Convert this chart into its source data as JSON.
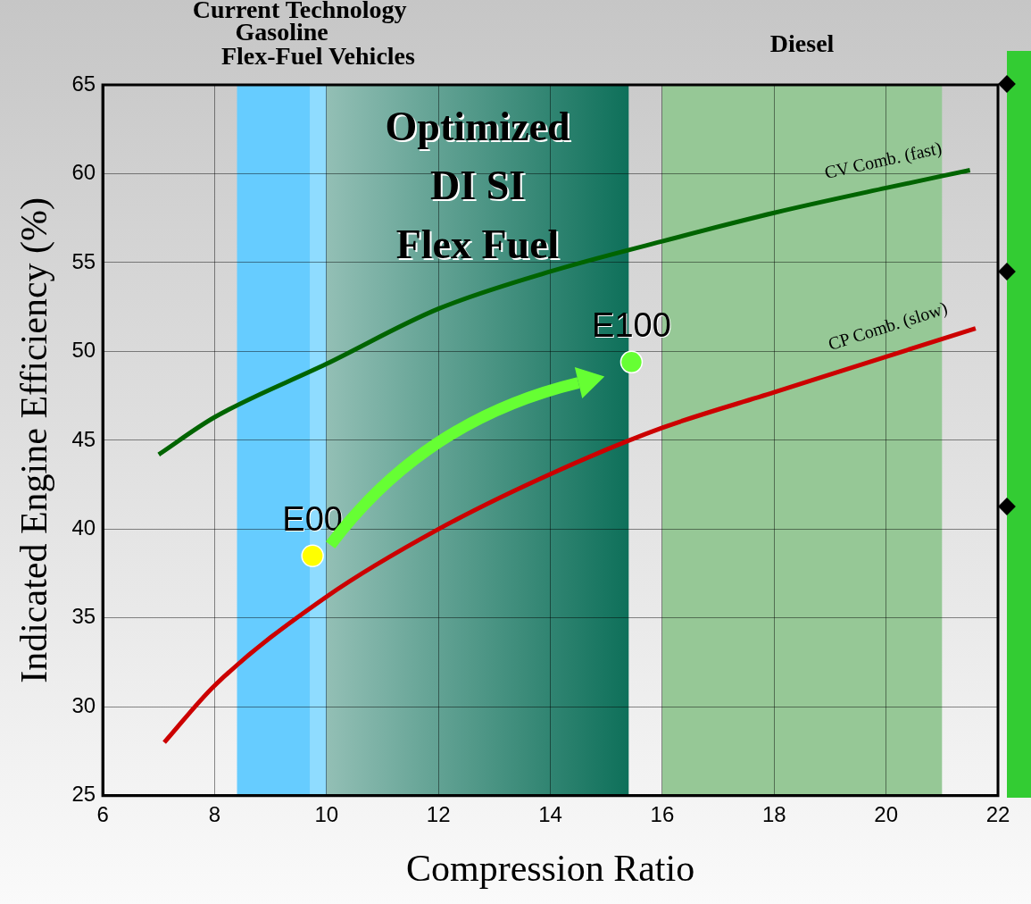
{
  "chart_data": {
    "type": "line",
    "xlabel": "Compression Ratio",
    "ylabel": "Indicated Engine Efficiency (%)",
    "xlim": [
      6,
      22
    ],
    "xticks": [
      6,
      8,
      10,
      12,
      14,
      16,
      18,
      20,
      22
    ],
    "ylim": [
      25,
      65
    ],
    "yticks": [
      25,
      30,
      35,
      40,
      45,
      50,
      55,
      60,
      65
    ],
    "grid": true,
    "legend": false,
    "series": [
      {
        "name": "CV Comb. (fast)",
        "color": "#006400",
        "x": [
          7,
          8,
          10,
          12,
          14,
          16,
          18,
          20,
          21.5
        ],
        "values": [
          44.2,
          46.3,
          49.3,
          52.4,
          54.5,
          56.2,
          57.8,
          59.2,
          60.2
        ]
      },
      {
        "name": "CP Comb. (slow)",
        "color": "#cc0000",
        "x": [
          7.1,
          8,
          10,
          12,
          14,
          16,
          18,
          20,
          21.6
        ],
        "values": [
          28.0,
          31.2,
          36.2,
          40.0,
          43.1,
          45.7,
          47.7,
          49.7,
          51.3
        ]
      },
      {
        "name": "E00",
        "type": "scatter",
        "color": "#ffff00",
        "x": [
          9.75
        ],
        "values": [
          38.5
        ]
      },
      {
        "name": "E100",
        "type": "scatter",
        "color": "#66ff33",
        "x": [
          15.45
        ],
        "values": [
          49.4
        ]
      }
    ],
    "bands": [
      {
        "axis": "x",
        "from": 8.4,
        "to": 10,
        "label": "Gasoline",
        "color": "#66ccff"
      },
      {
        "axis": "x",
        "from": 9.7,
        "to": 10,
        "label": "Flex-Fuel Vehicles",
        "color": "#8fdcff"
      },
      {
        "axis": "x",
        "from": 10,
        "to": 15.4,
        "label": "Optimized\nDI SI\nFlex Fuel",
        "color": "#0e705a"
      },
      {
        "axis": "x",
        "from": 16,
        "to": 21,
        "label": "Diesel",
        "color": "#96c896"
      }
    ],
    "annotations": [
      "Current Technology"
    ]
  }
}
